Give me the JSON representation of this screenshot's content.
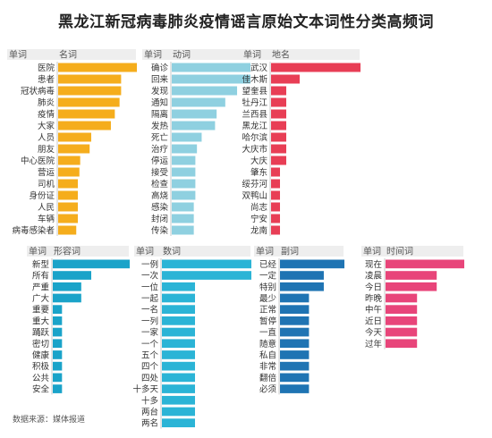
{
  "title": "黑龙江新冠病毒肺炎疫情谣言原始文本词性分类高频词",
  "source": "数据来源：媒体报道",
  "chart_data": [
    {
      "type": "bar",
      "header_left": "单词",
      "header_right": "名词",
      "color": "#f5ad1c",
      "categories": [
        "医院",
        "患者",
        "冠状病毒",
        "肺炎",
        "疫情",
        "大家",
        "人员",
        "朋友",
        "中心医院",
        "营运",
        "司机",
        "身份证",
        "人民",
        "车辆",
        "病毒感染者"
      ],
      "values": [
        100,
        80,
        80,
        78,
        72,
        67,
        42,
        40,
        28,
        27,
        25,
        25,
        25,
        25,
        23
      ]
    },
    {
      "type": "bar",
      "header_left": "单词",
      "header_right": "动词",
      "color": "#8fd0e0",
      "categories": [
        "确诊",
        "回来",
        "发现",
        "通知",
        "隔离",
        "发热",
        "死亡",
        "治疗",
        "停运",
        "接受",
        "检查",
        "高烧",
        "感染",
        "封闭",
        "传染"
      ],
      "values": [
        100,
        100,
        83,
        68,
        57,
        55,
        38,
        32,
        30,
        30,
        30,
        30,
        28,
        28,
        28
      ]
    },
    {
      "type": "bar",
      "header_left": "单词",
      "header_right": "地名",
      "color": "#e83e55",
      "categories": [
        "武汉",
        "佳木斯",
        "望奎县",
        "牡丹江",
        "兰西县",
        "黑龙江",
        "哈尔滨",
        "大庆市",
        "大庆",
        "肇东",
        "绥芬河",
        "双鸭山",
        "尚志",
        "宁安",
        "龙南"
      ],
      "values": [
        100,
        32,
        17,
        17,
        17,
        17,
        17,
        17,
        17,
        10,
        10,
        10,
        10,
        10,
        10
      ]
    },
    {
      "type": "bar",
      "header_left": "单词",
      "header_right": "形容词",
      "color": "#1aa3c9",
      "categories": [
        "新型",
        "所有",
        "严重",
        "广大",
        "重要",
        "重大",
        "踊跃",
        "密切",
        "健康",
        "积极",
        "公共",
        "安全"
      ],
      "values": [
        100,
        50,
        37,
        37,
        12,
        12,
        12,
        12,
        12,
        12,
        12,
        12
      ]
    },
    {
      "type": "bar",
      "header_left": "单词",
      "header_right": "数词",
      "color": "#2bb4d6",
      "categories": [
        "一例",
        "一次",
        "一位",
        "一起",
        "一名",
        "一列",
        "一家",
        "一个",
        "五个",
        "四个",
        "四处",
        "十多天",
        "十多",
        "两台",
        "两名"
      ],
      "values": [
        100,
        100,
        37,
        37,
        37,
        37,
        37,
        37,
        37,
        37,
        37,
        37,
        37,
        37,
        37
      ]
    },
    {
      "type": "bar",
      "header_left": "单词",
      "header_right": "副词",
      "color": "#1f74b3",
      "categories": [
        "已经",
        "一定",
        "特别",
        "最少",
        "正常",
        "暂停",
        "一直",
        "随意",
        "私自",
        "非常",
        "翻倍",
        "必须"
      ],
      "values": [
        100,
        68,
        68,
        45,
        45,
        45,
        45,
        45,
        45,
        45,
        45,
        45
      ]
    },
    {
      "type": "bar",
      "header_left": "单词",
      "header_right": "时间词",
      "color": "#e8457a",
      "categories": [
        "现在",
        "凌晨",
        "今日",
        "昨晚",
        "中午",
        "近日",
        "今天",
        "过年"
      ],
      "values": [
        100,
        65,
        65,
        40,
        40,
        40,
        40,
        40
      ]
    }
  ]
}
